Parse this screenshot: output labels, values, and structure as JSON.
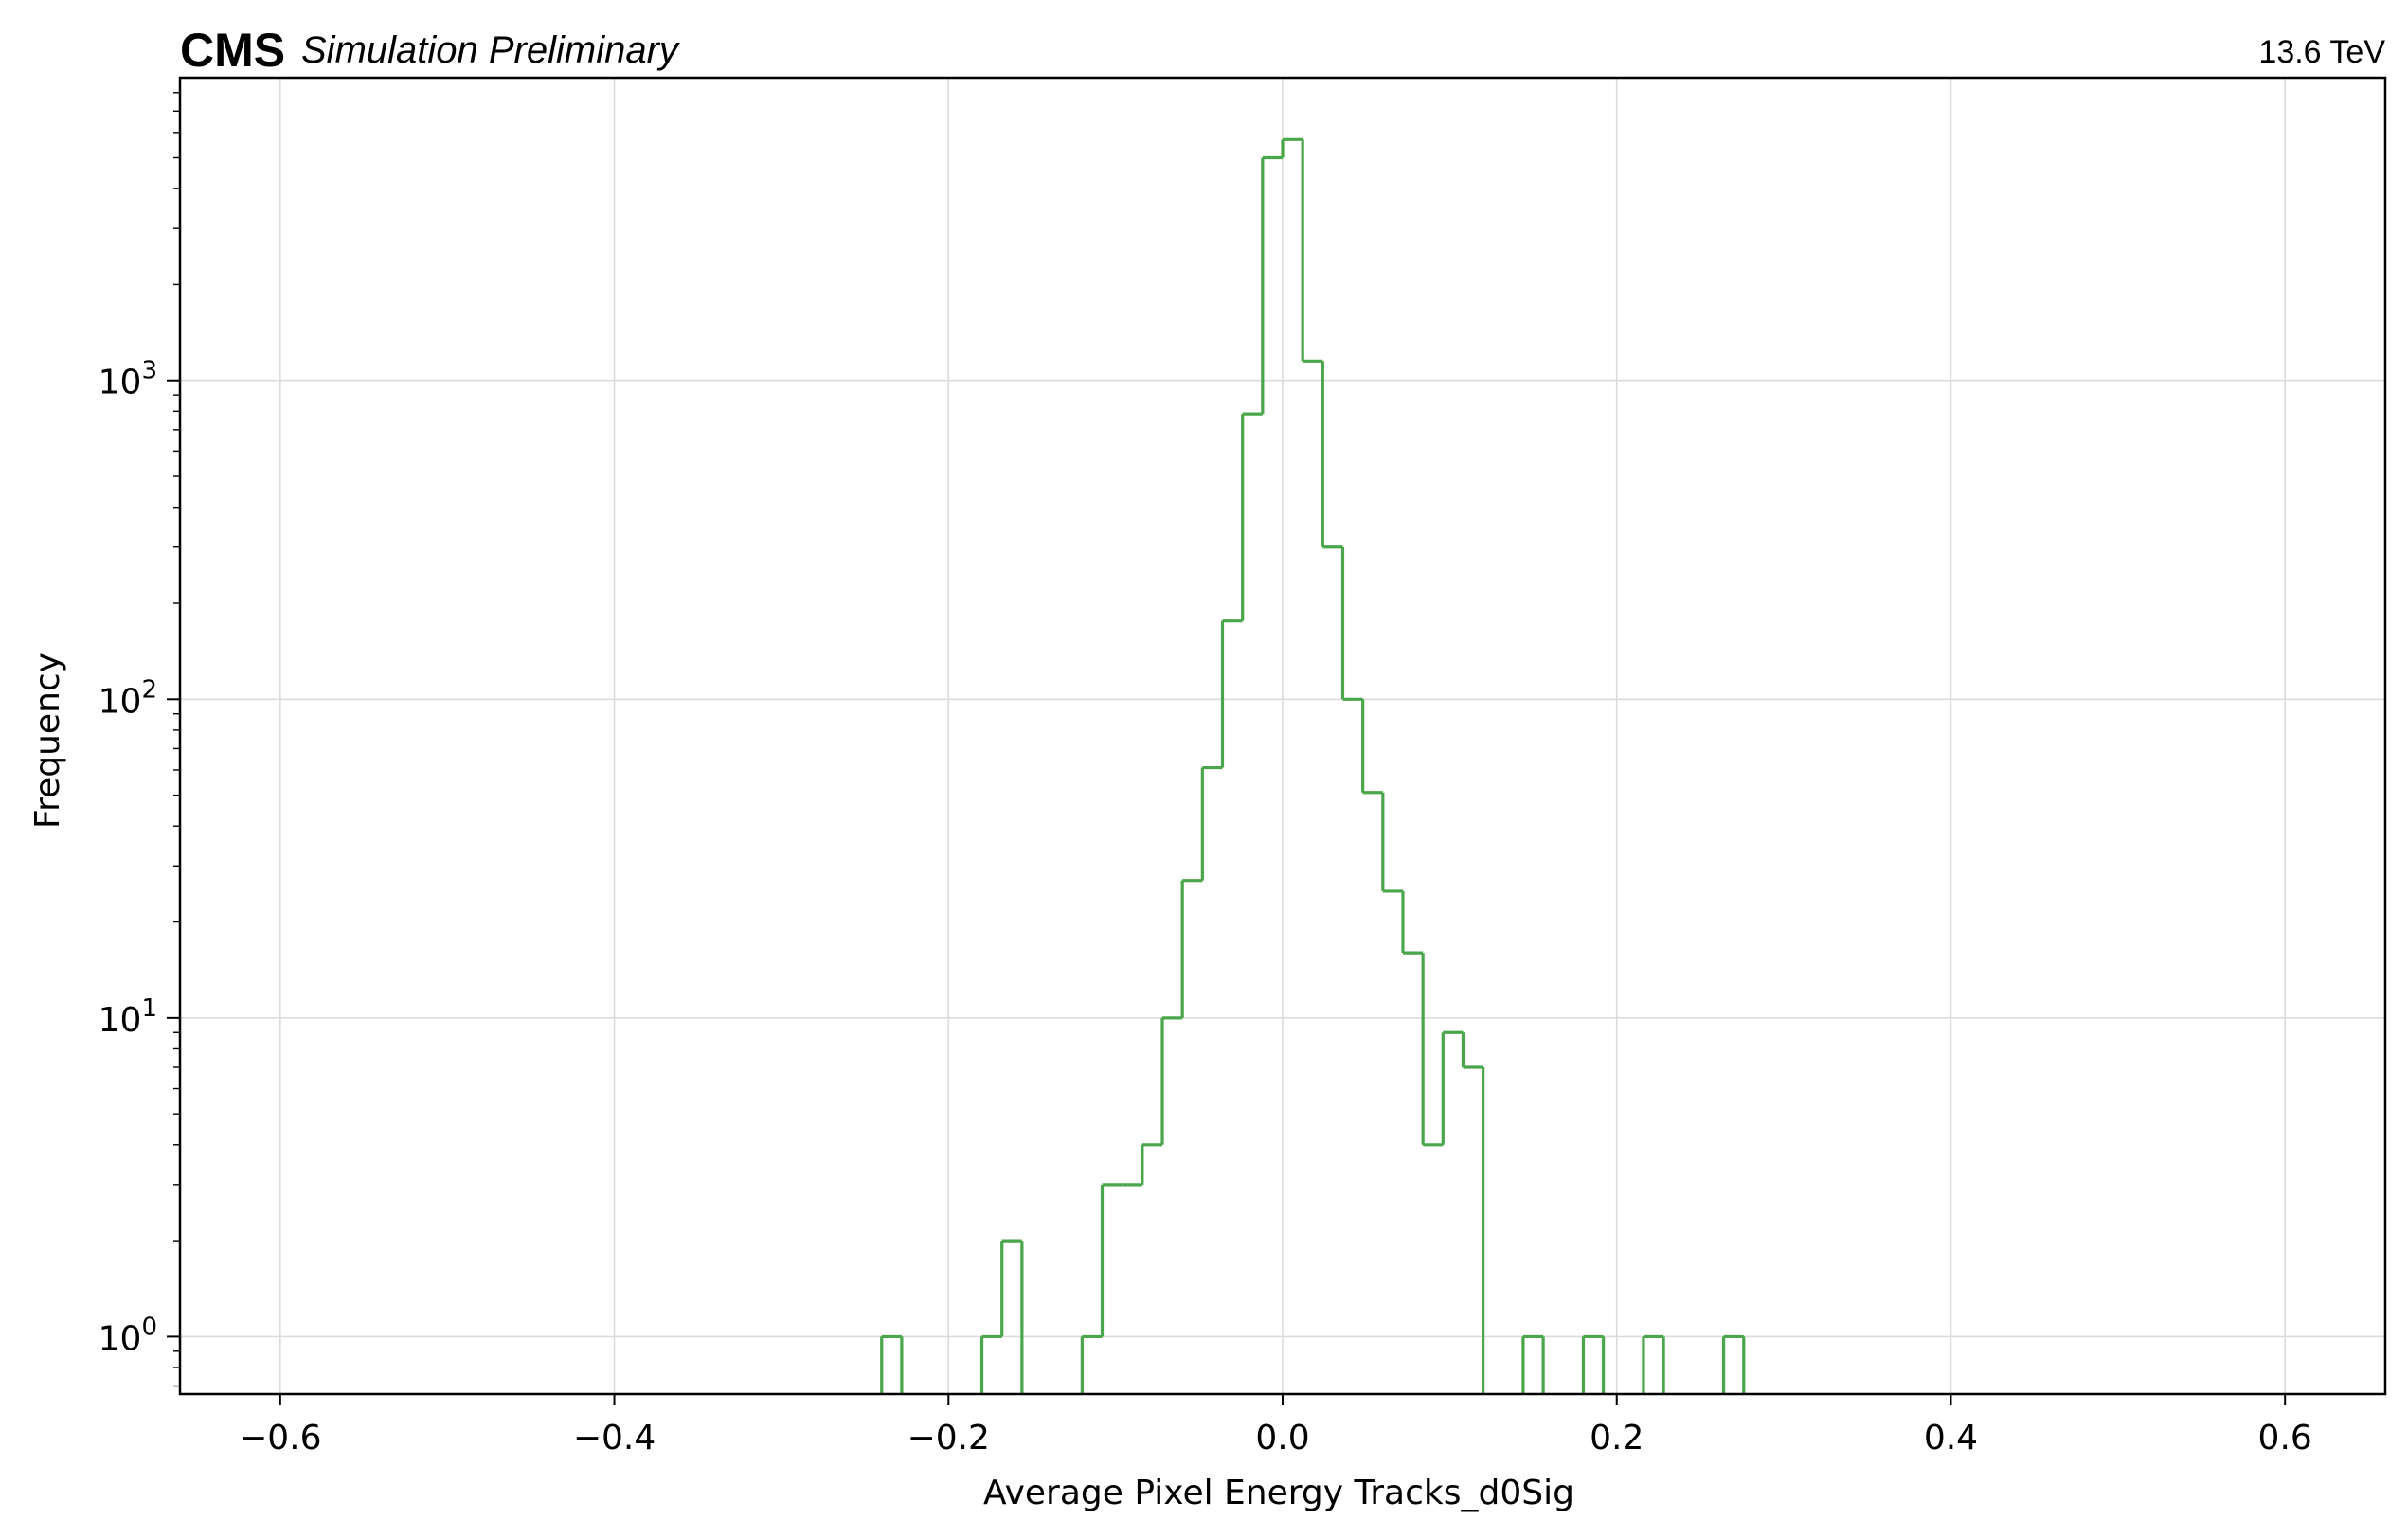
{
  "header": {
    "experiment": "CMS",
    "status": "Simulation Preliminary",
    "energy": "13.6 TeV"
  },
  "chart_data": {
    "type": "histogram",
    "title": "",
    "xlabel": "Average Pixel Energy Tracks_d0Sig",
    "ylabel": "Frequency",
    "xlim": [
      -0.66,
      0.66
    ],
    "ylim_log10": [
      -0.18,
      3.95
    ],
    "yscale": "log",
    "grid": true,
    "x_ticks": [
      -0.6,
      -0.4,
      -0.2,
      0.0,
      0.2,
      0.4,
      0.6
    ],
    "x_tick_labels": [
      "−0.6",
      "−0.4",
      "−0.2",
      "0.0",
      "0.2",
      "0.4",
      "0.6"
    ],
    "y_tick_exponents": [
      0,
      1,
      2,
      3
    ],
    "y_tick_base": "10",
    "line_color": "#4aa64a",
    "bin_width": 0.012,
    "bins": [
      {
        "x0": -0.24,
        "count": 1
      },
      {
        "x0": -0.228,
        "count": 0
      },
      {
        "x0": -0.18,
        "count": 1
      },
      {
        "x0": -0.168,
        "count": 2
      },
      {
        "x0": -0.156,
        "count": 0
      },
      {
        "x0": -0.12,
        "count": 1
      },
      {
        "x0": -0.108,
        "count": 3
      },
      {
        "x0": -0.096,
        "count": 3
      },
      {
        "x0": -0.084,
        "count": 4
      },
      {
        "x0": -0.072,
        "count": 10
      },
      {
        "x0": -0.06,
        "count": 27
      },
      {
        "x0": -0.048,
        "count": 61
      },
      {
        "x0": -0.036,
        "count": 176
      },
      {
        "x0": -0.024,
        "count": 785
      },
      {
        "x0": -0.012,
        "count": 5000
      },
      {
        "x0": 0.0,
        "count": 5700
      },
      {
        "x0": 0.012,
        "count": 1150
      },
      {
        "x0": 0.024,
        "count": 300
      },
      {
        "x0": 0.036,
        "count": 100
      },
      {
        "x0": 0.048,
        "count": 51
      },
      {
        "x0": 0.06,
        "count": 25
      },
      {
        "x0": 0.072,
        "count": 16
      },
      {
        "x0": 0.084,
        "count": 4
      },
      {
        "x0": 0.096,
        "count": 9
      },
      {
        "x0": 0.108,
        "count": 7
      },
      {
        "x0": 0.12,
        "count": 0
      },
      {
        "x0": 0.144,
        "count": 1
      },
      {
        "x0": 0.156,
        "count": 0
      },
      {
        "x0": 0.18,
        "count": 1
      },
      {
        "x0": 0.192,
        "count": 0
      },
      {
        "x0": 0.216,
        "count": 1
      },
      {
        "x0": 0.228,
        "count": 0
      },
      {
        "x0": 0.264,
        "count": 1
      },
      {
        "x0": 0.276,
        "count": 0
      }
    ]
  }
}
